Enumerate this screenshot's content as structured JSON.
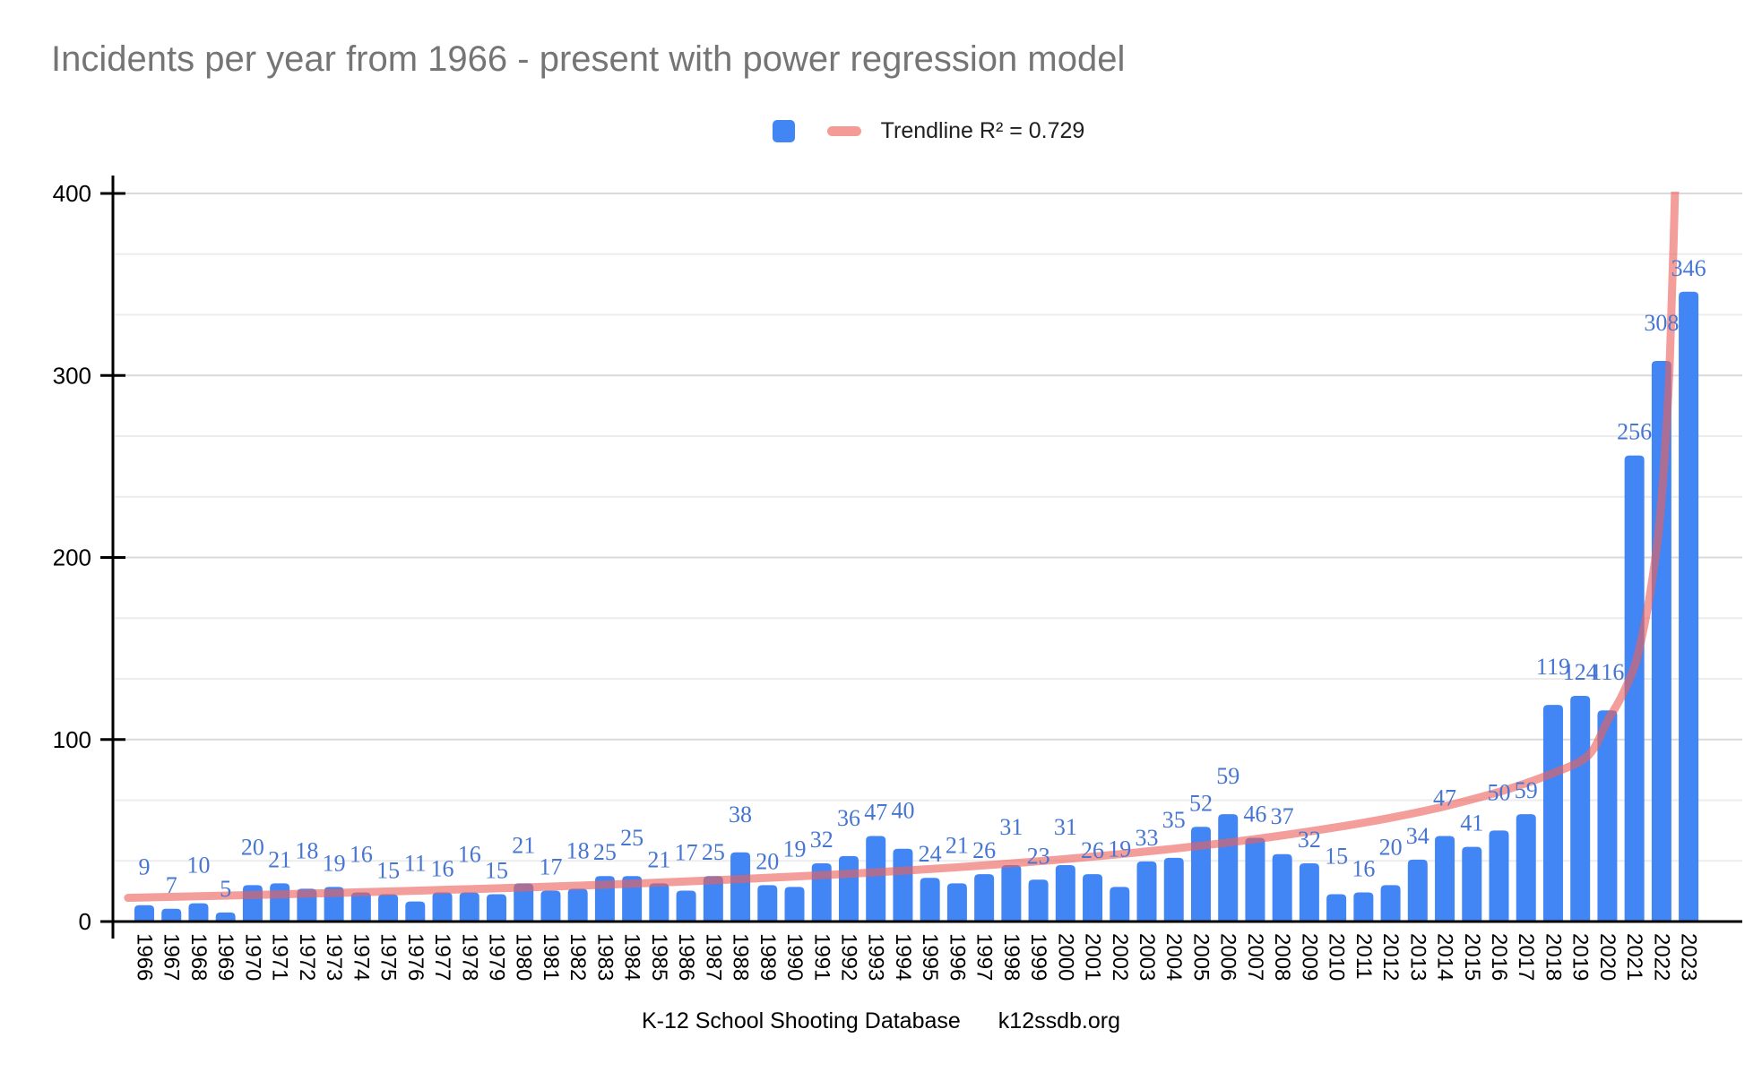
{
  "title": "Incidents per year from 1966 - present with power regression model",
  "legend": {
    "trendline_label": "Trendline R² = 0.729"
  },
  "footer": {
    "source": "K-12 School Shooting Database",
    "url": "k12ssdb.org"
  },
  "colors": {
    "bar": "#4285f4",
    "trendline": "rgba(236,98,92,0.62)",
    "legend_dash": "#f59b95",
    "data_label": "#4675d2",
    "title_text": "#757575",
    "axis": "#000000",
    "gridline_major": "#d9d9d9",
    "gridline_minor": "#ececec"
  },
  "chart_data": {
    "type": "bar",
    "title": "Incidents per year from 1966 - present with power regression model",
    "xlabel": "",
    "ylabel": "",
    "ylim": [
      0,
      400
    ],
    "y_ticks": [
      0,
      100,
      200,
      300,
      400
    ],
    "minor_gridline_step": 33.3333,
    "grid": true,
    "legend_position": "top-center",
    "source_note": "K-12 School Shooting Database    k12ssdb.org",
    "categories": [
      "1966",
      "1967",
      "1968",
      "1969",
      "1970",
      "1971",
      "1972",
      "1973",
      "1974",
      "1975",
      "1976",
      "1977",
      "1978",
      "1979",
      "1980",
      "1981",
      "1982",
      "1983",
      "1984",
      "1985",
      "1986",
      "1987",
      "1988",
      "1989",
      "1990",
      "1991",
      "1992",
      "1993",
      "1994",
      "1995",
      "1996",
      "1997",
      "1998",
      "1999",
      "2000",
      "2001",
      "2002",
      "2003",
      "2004",
      "2005",
      "2006",
      "2007",
      "2008",
      "2009",
      "2010",
      "2011",
      "2012",
      "2013",
      "2014",
      "2015",
      "2016",
      "2017",
      "2018",
      "2019",
      "2020",
      "2021",
      "2022",
      "2023"
    ],
    "values": [
      9,
      7,
      10,
      5,
      20,
      21,
      18,
      19,
      16,
      15,
      11,
      16,
      16,
      15,
      21,
      17,
      18,
      25,
      25,
      21,
      17,
      25,
      38,
      20,
      19,
      32,
      36,
      47,
      40,
      24,
      21,
      26,
      31,
      23,
      31,
      26,
      19,
      33,
      35,
      52,
      59,
      46,
      37,
      32,
      15,
      16,
      20,
      34,
      47,
      41,
      50,
      59,
      119,
      124,
      116,
      256,
      308,
      346
    ],
    "trendline": {
      "model": "power",
      "r_squared": 0.729,
      "points_index_value": [
        [
          -0.6,
          13
        ],
        [
          0,
          13.2
        ],
        [
          2,
          13.9
        ],
        [
          4,
          14.6
        ],
        [
          6,
          15.3
        ],
        [
          8,
          16.1
        ],
        [
          10,
          16.9
        ],
        [
          12,
          17.8
        ],
        [
          14,
          18.7
        ],
        [
          16,
          19.7
        ],
        [
          18,
          20.8
        ],
        [
          20,
          22
        ],
        [
          22,
          23.3
        ],
        [
          24,
          24.7
        ],
        [
          26,
          26.2
        ],
        [
          28,
          27.9
        ],
        [
          30,
          29.8
        ],
        [
          32,
          31.9
        ],
        [
          34,
          34.3
        ],
        [
          36,
          37
        ],
        [
          38,
          40
        ],
        [
          40,
          43.4
        ],
        [
          42,
          47.3
        ],
        [
          44,
          51.8
        ],
        [
          46,
          57
        ],
        [
          48,
          63.3
        ],
        [
          50,
          71.2
        ],
        [
          51,
          76
        ],
        [
          52,
          81.5
        ],
        [
          53,
          88
        ],
        [
          53.5,
          95
        ],
        [
          54,
          110
        ],
        [
          54.5,
          123
        ],
        [
          55,
          140
        ],
        [
          55.3,
          158
        ],
        [
          55.6,
          182
        ],
        [
          55.9,
          215
        ],
        [
          56.1,
          252
        ],
        [
          56.3,
          305
        ],
        [
          56.45,
          375
        ],
        [
          56.6,
          460
        ]
      ]
    }
  }
}
